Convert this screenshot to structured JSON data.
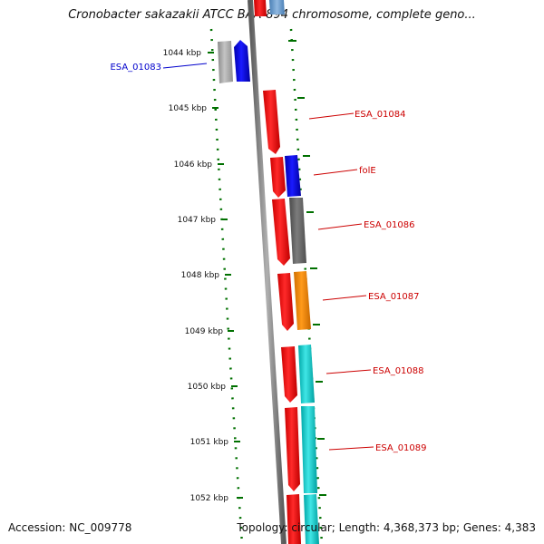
{
  "title": "Cronobacter sakazakii ATCC BAA-894 chromosome, complete geno...",
  "footer": {
    "accession": "Accession: NC_009778",
    "summary": "Topology: circular; Length: 4,368,373 bp; Genes: 4,383"
  },
  "colors": {
    "red": "#ff0000",
    "blue": "#0000ff",
    "gray": "#a0a0a0",
    "dark_gray": "#6a6a6a",
    "orange": "#ff8c00",
    "teal": "#00c8c8",
    "light_blue": "#6699cc",
    "tick_green": "#007000",
    "label_red": "#cc0000",
    "label_blue": "#0000cc"
  },
  "kbp_ticks": [
    "1044 kbp",
    "1045 kbp",
    "1046 kbp",
    "1047 kbp",
    "1048 kbp",
    "1049 kbp",
    "1050 kbp",
    "1051 kbp",
    "1052 kbp"
  ],
  "gene_labels": [
    {
      "text": "ESA_01083",
      "color": "blue",
      "side": "left"
    },
    {
      "text": "ESA_01084",
      "color": "red",
      "side": "right"
    },
    {
      "text": "folE",
      "color": "red",
      "side": "right"
    },
    {
      "text": "ESA_01086",
      "color": "red",
      "side": "right"
    },
    {
      "text": "ESA_01087",
      "color": "red",
      "side": "right"
    },
    {
      "text": "ESA_01088",
      "color": "red",
      "side": "right"
    },
    {
      "text": "ESA_01089",
      "color": "red",
      "side": "right"
    }
  ]
}
